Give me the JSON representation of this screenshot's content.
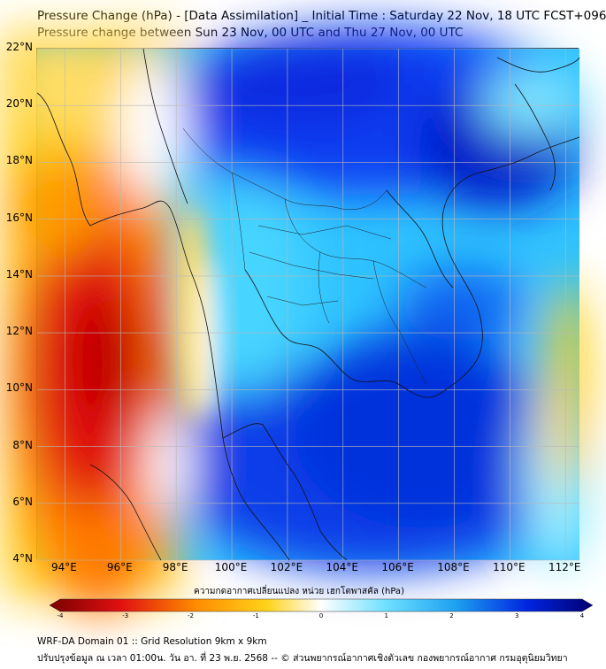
{
  "header": {
    "title_line1": "Pressure Change (hPa) - [Data Assimilation] _ Initial Time : Saturday 22 Nov, 18 UTC FCST+096",
    "title_line2": "Pressure change between Sun 23 Nov, 00 UTC and Thu 27 Nov, 00 UTC"
  },
  "map": {
    "lat_min": 4,
    "lat_max": 22,
    "lon_min": 93,
    "lon_max": 112.5,
    "lat_ticks": [
      "22°N",
      "20°N",
      "18°N",
      "16°N",
      "14°N",
      "12°N",
      "10°N",
      "8°N",
      "6°N",
      "4°N"
    ],
    "lon_ticks": [
      "94°E",
      "96°E",
      "98°E",
      "100°E",
      "102°E",
      "104°E",
      "106°E",
      "108°E",
      "110°E",
      "112°E"
    ],
    "field": "pressure change (hPa)",
    "field_range": [
      -4,
      4
    ]
  },
  "colorbar": {
    "label": "ความกดอากาศเปลี่ยนแปลง หน่วย เฮกโตพาสคัล (hPa)",
    "ticks": [
      "-4",
      "-3",
      "-2",
      "-1",
      "0",
      "1",
      "2",
      "3",
      "4"
    ],
    "colors": {
      "min": "#7a0000",
      "neg_strong": "#e01010",
      "neg_mid": "#ff8c00",
      "neg_weak": "#ffd21a",
      "zero": "#ffffff",
      "pos_weak": "#6ee0ff",
      "pos_mid": "#1c9ff0",
      "pos_strong": "#0024e0",
      "max": "#000070"
    }
  },
  "footer": {
    "line1": "WRF-DA Domain 01 :: Grid Resolution 9km x 9km",
    "line2": "ปรับปรุงข้อมูล ณ เวลา 01:00น. วัน อา. ที่ 23 พ.ย. 2568 -- © ส่วนพยากรณ์อากาศเชิงตัวเลข กองพยากรณ์อากาศ กรมอุตุนิยมวิทยา"
  }
}
